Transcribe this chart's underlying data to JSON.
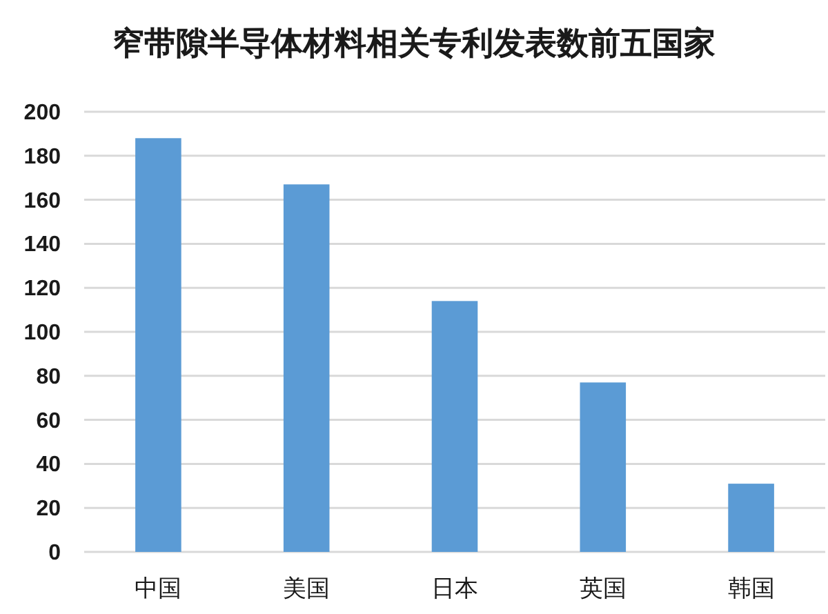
{
  "chart_data": {
    "type": "bar",
    "title": "窄带隙半导体材料相关专利发表数前五国家",
    "categories": [
      "中国",
      "美国",
      "日本",
      "英国",
      "韩国"
    ],
    "values": [
      188,
      167,
      114,
      77,
      31
    ],
    "color": "#5b9bd5",
    "ylim": [
      0,
      200
    ],
    "yticks": [
      0,
      20,
      40,
      60,
      80,
      100,
      120,
      140,
      160,
      180,
      200
    ],
    "grid": "y"
  }
}
